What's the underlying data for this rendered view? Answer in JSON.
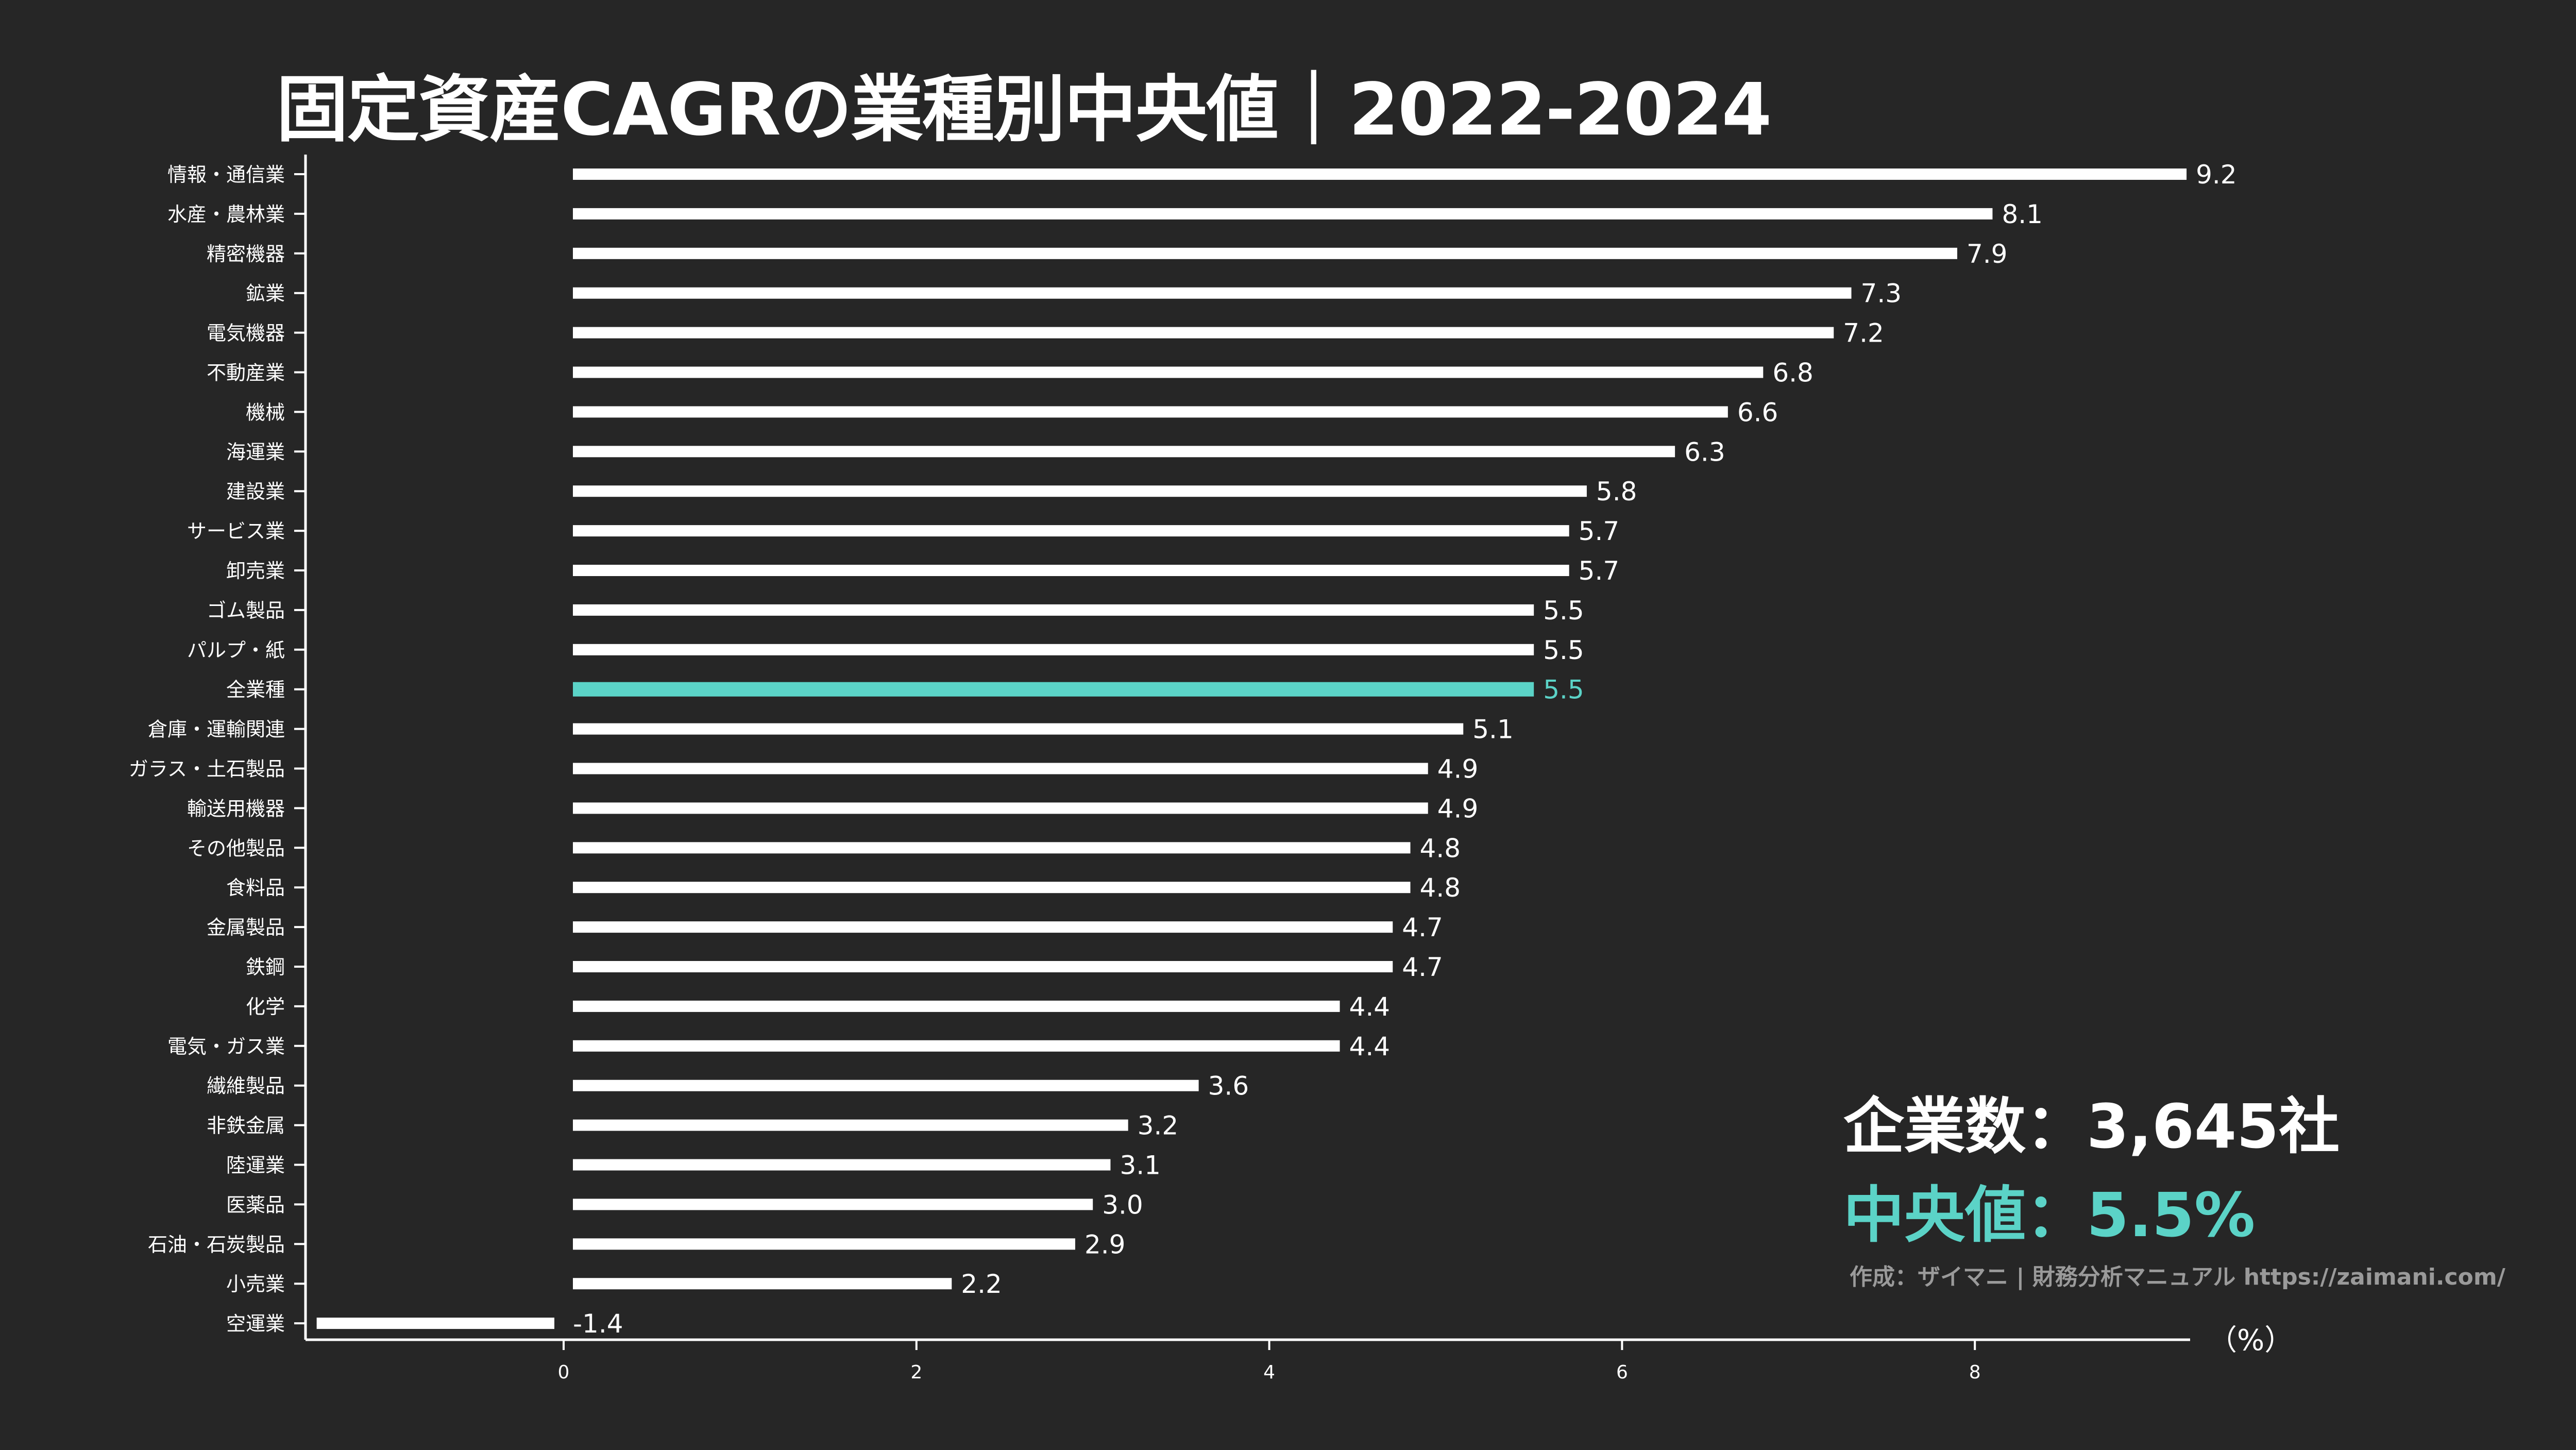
{
  "title": "固定資産CAGRの業種別中央値｜2022-2024",
  "stats": {
    "companies": "企業数：3,645社",
    "median": "中央値：5.5%"
  },
  "credit": "作成：ザイマニ | 財務分析マニュアル https://zaimani.com/",
  "colors": {
    "background": "#262626",
    "bar": "#ffffff",
    "highlight": "#5BD3C7",
    "credit": "#9a9a9a"
  },
  "chart_data": {
    "type": "bar",
    "orientation": "horizontal",
    "title": "固定資産CAGRの業種別中央値｜2022-2024",
    "xlabel": "（%）",
    "xlim": [
      -1.4,
      9.2
    ],
    "xticks": [
      0,
      2,
      4,
      6,
      8
    ],
    "highlight": "全業種",
    "categories": [
      "情報・通信業",
      "水産・農林業",
      "精密機器",
      "鉱業",
      "電気機器",
      "不動産業",
      "機械",
      "海運業",
      "建設業",
      "サービス業",
      "卸売業",
      "ゴム製品",
      "パルプ・紙",
      "全業種",
      "倉庫・運輸関連",
      "ガラス・土石製品",
      "輸送用機器",
      "その他製品",
      "食料品",
      "金属製品",
      "鉄鋼",
      "化学",
      "電気・ガス業",
      "繊維製品",
      "非鉄金属",
      "陸運業",
      "医薬品",
      "石油・石炭製品",
      "小売業",
      "空運業"
    ],
    "values": [
      9.2,
      8.1,
      7.9,
      7.3,
      7.2,
      6.8,
      6.6,
      6.3,
      5.8,
      5.7,
      5.7,
      5.5,
      5.5,
      5.5,
      5.1,
      4.9,
      4.9,
      4.8,
      4.8,
      4.7,
      4.7,
      4.4,
      4.4,
      3.6,
      3.2,
      3.1,
      3.0,
      2.9,
      2.2,
      -1.4
    ],
    "value_labels": [
      "9.2",
      "8.1",
      "7.9",
      "7.3",
      "7.2",
      "6.8",
      "6.6",
      "6.3",
      "5.8",
      "5.7",
      "5.7",
      "5.5",
      "5.5",
      "5.5",
      "5.1",
      "4.9",
      "4.9",
      "4.8",
      "4.8",
      "4.7",
      "4.7",
      "4.4",
      "4.4",
      "3.6",
      "3.2",
      "3.1",
      "3.0",
      "2.9",
      "2.2",
      "-1.4"
    ]
  }
}
